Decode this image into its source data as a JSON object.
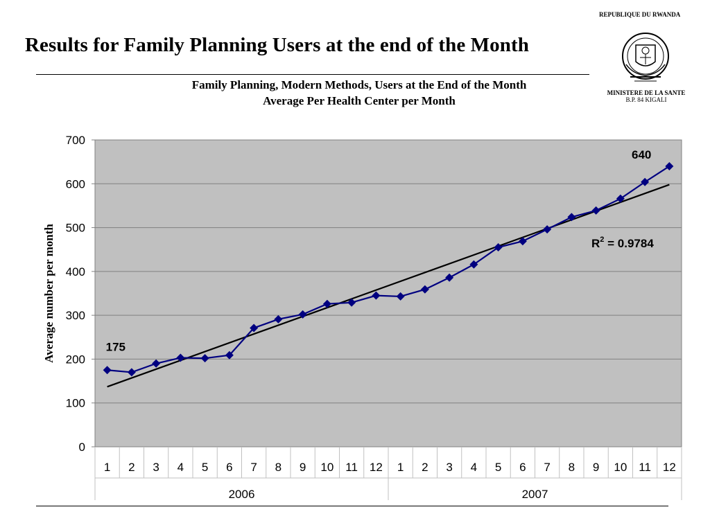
{
  "slide": {
    "title": "Results for Family Planning Users at the end of the Month"
  },
  "header": {
    "country": "REPUBLIQUE DU RWANDA",
    "ministry": "MINISTERE DE LA SANTE",
    "address": "B.P.  84 KIGALI",
    "emblem_icon": "rwanda-coat-of-arms-icon"
  },
  "chart_data": {
    "type": "line",
    "title": "Family Planning, Modern Methods, Users at the End of the Month",
    "subtitle": "Average Per Health Center per Month",
    "ylabel": "Average number per month",
    "xlabel": "",
    "ylim": [
      0,
      700
    ],
    "yticks": [
      0,
      100,
      200,
      300,
      400,
      500,
      600,
      700
    ],
    "categories": [
      "1",
      "2",
      "3",
      "4",
      "5",
      "6",
      "7",
      "8",
      "9",
      "10",
      "11",
      "12",
      "1",
      "2",
      "3",
      "4",
      "5",
      "6",
      "7",
      "8",
      "9",
      "10",
      "11",
      "12"
    ],
    "year_groups": [
      {
        "label": "2006",
        "count": 12
      },
      {
        "label": "2007",
        "count": 12
      }
    ],
    "series": [
      {
        "values": [
          175,
          170,
          190,
          203,
          202,
          209,
          271,
          291,
          302,
          326,
          329,
          345,
          343,
          359,
          386,
          416,
          455,
          469,
          496,
          524,
          539,
          566,
          604,
          640
        ],
        "color": "#000080",
        "marker": "diamond"
      }
    ],
    "trendline": {
      "type": "linear",
      "start_value": 137,
      "end_value": 598,
      "color": "#000000",
      "r_squared_label": "= 0.9784",
      "r_squared_prefix": "R",
      "r_squared_exponent": "2"
    },
    "data_labels": [
      {
        "index": 0,
        "text": "175"
      },
      {
        "index": 23,
        "text": "640"
      }
    ],
    "grid": true,
    "plot_background": "#c0c0c0",
    "legend": "none"
  }
}
